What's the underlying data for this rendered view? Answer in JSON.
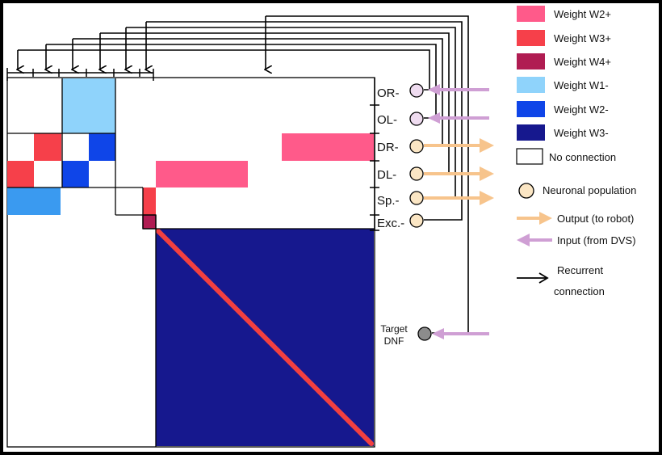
{
  "legend": {
    "weight_w2_plus": {
      "label": "Weight W2+",
      "color": "#ff5a8a"
    },
    "weight_w3_plus": {
      "label": "Weight W3+",
      "color": "#f6404a"
    },
    "weight_w4_plus": {
      "label": "Weight W4+",
      "color": "#b01c52"
    },
    "weight_w1_minus": {
      "label": "Weight W1-",
      "color": "#8fd3fb"
    },
    "weight_w2_minus": {
      "label": "Weight W2-",
      "color": "#0f45e8"
    },
    "weight_w3_minus": {
      "label": "Weight W3-",
      "color": "#16188e"
    },
    "no_connection": {
      "label": "No connection",
      "color": "#ffffff"
    },
    "neuronal_population": "Neuronal population",
    "output": "Output (to robot)",
    "input": "Input (from DVS)",
    "recurrent_line1": "Recurrent",
    "recurrent_line2": "connection"
  },
  "rows": {
    "or": "OR-",
    "ol": "OL-",
    "dr": "DR-",
    "dl": "DL-",
    "sp": "Sp.-",
    "exc": "Exc.-"
  },
  "target": {
    "line1": "Target",
    "line2": "DNF"
  },
  "colors": {
    "w1_light_blue": "#8fd3fb",
    "w1_mid_blue": "#3a9af0",
    "diagonal": "#f24040",
    "neuron_fill": "#fbe6c4",
    "input_neuron_fill": "#efdcf0",
    "target_fill": "#8c8c8c",
    "output_arrow": "#f7c48c",
    "input_arrow": "#cf9fd4"
  }
}
